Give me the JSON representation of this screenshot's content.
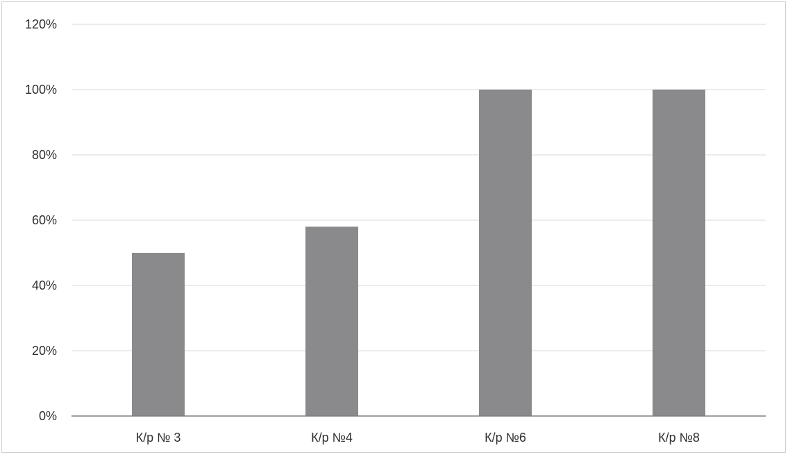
{
  "chart_data": {
    "type": "bar",
    "categories": [
      "К/р № 3",
      "К/р №4",
      "К/р №6",
      "К/р №8"
    ],
    "values": [
      50,
      58,
      100,
      100
    ],
    "unit": "%",
    "ylim": [
      0,
      120
    ],
    "yticks": [
      0,
      20,
      40,
      60,
      80,
      100,
      120
    ],
    "ytick_labels": [
      "0%",
      "20%",
      "40%",
      "60%",
      "80%",
      "100%",
      "120%"
    ],
    "grid": true,
    "legend": "none",
    "title": "",
    "xlabel": "",
    "ylabel": "",
    "colors": {
      "bar": "#8a8a8c",
      "grid": "#d9d9d9",
      "axis": "#7f7f7f",
      "text": "#303030"
    }
  }
}
